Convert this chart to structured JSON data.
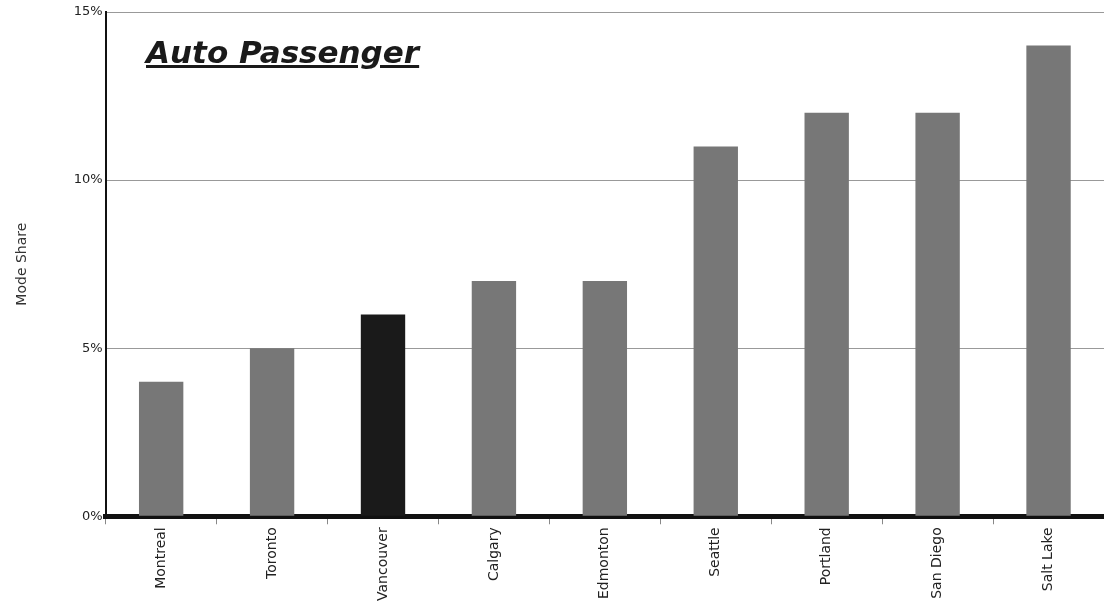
{
  "chart_data": {
    "type": "bar",
    "title": "Auto Passenger",
    "ylabel": "Mode Share",
    "categories": [
      "Montreal",
      "Toronto",
      "Vancouver",
      "Calgary",
      "Edmonton",
      "Seattle",
      "Portland",
      "San Diego",
      "Salt Lake"
    ],
    "values": [
      4,
      5,
      6,
      7,
      7,
      11,
      12,
      12,
      14
    ],
    "colors": [
      "#777777",
      "#777777",
      "#1a1a1a",
      "#777777",
      "#777777",
      "#777777",
      "#777777",
      "#777777",
      "#777777"
    ],
    "ylim": [
      0,
      15
    ],
    "yticks": [
      {
        "value": 0,
        "label": "0%"
      },
      {
        "value": 5,
        "label": "5%"
      },
      {
        "value": 10,
        "label": "10%"
      },
      {
        "value": 15,
        "label": "15%"
      }
    ],
    "grid": "y",
    "legend": false
  }
}
